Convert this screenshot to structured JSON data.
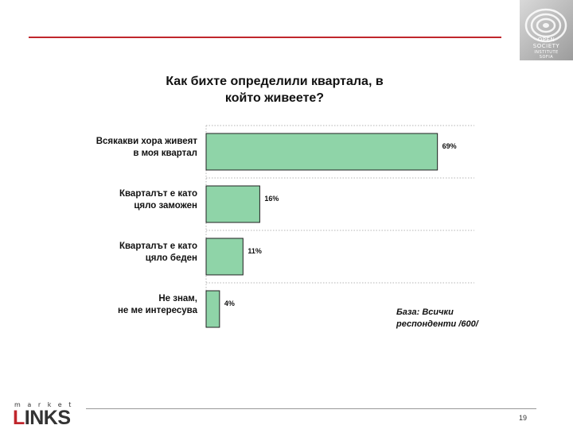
{
  "slide": {
    "page_number": "19",
    "base_note": [
      "База: Всички",
      "респонденти   /600/"
    ]
  },
  "logos": {
    "top_right": {
      "lines": [
        "OPEN",
        "SOCIETY",
        "INSTITUTE",
        "SOFIA"
      ]
    },
    "bottom_left": {
      "small": "market",
      "big_accent": "L",
      "big_rest": "INKS"
    }
  },
  "colors": {
    "bar_fill": "#8fd4a8",
    "bar_stroke": "#1f1f1f",
    "accent_red": "#c0262c",
    "gridline": "#b5b5b5"
  },
  "chart_data": {
    "type": "bar",
    "orientation": "horizontal",
    "title": [
      "Как бихте определили квартала, в",
      "който живеете?"
    ],
    "categories": [
      [
        "Всякакви хора живеят",
        "в моя квартал"
      ],
      [
        "Кварталът е като",
        "цяло заможен"
      ],
      [
        "Кварталът е като",
        "цяло беден"
      ],
      [
        "Не знам,",
        "не ме интересува"
      ]
    ],
    "values": [
      69,
      16,
      11,
      4
    ],
    "data_labels": [
      "69%",
      "16%",
      "11%",
      "4%"
    ],
    "xlim": [
      0,
      80
    ],
    "grid": true,
    "legend": "none"
  }
}
